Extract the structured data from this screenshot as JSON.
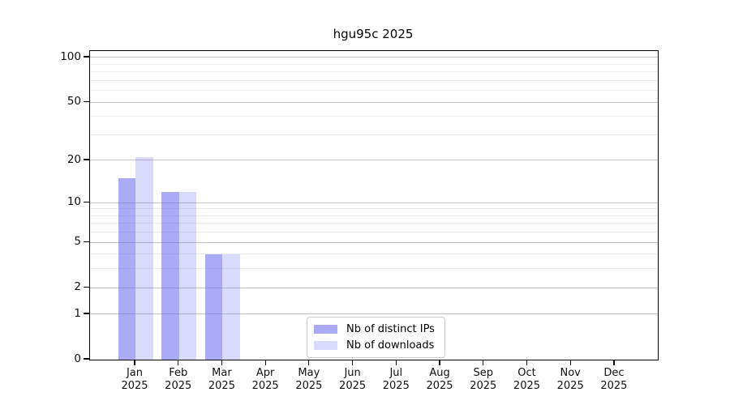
{
  "figure": {
    "background": "#ffffff",
    "text_color": "#000000",
    "spine_color": "#000000",
    "major_grid_color": "#c4c4c4",
    "minor_grid_color": "#ebebeb"
  },
  "chart_data": {
    "type": "bar",
    "title": "hgu95c 2025",
    "x_categories": [
      {
        "month": "Jan",
        "year": "2025"
      },
      {
        "month": "Feb",
        "year": "2025"
      },
      {
        "month": "Mar",
        "year": "2025"
      },
      {
        "month": "Apr",
        "year": "2025"
      },
      {
        "month": "May",
        "year": "2025"
      },
      {
        "month": "Jun",
        "year": "2025"
      },
      {
        "month": "Jul",
        "year": "2025"
      },
      {
        "month": "Aug",
        "year": "2025"
      },
      {
        "month": "Sep",
        "year": "2025"
      },
      {
        "month": "Oct",
        "year": "2025"
      },
      {
        "month": "Nov",
        "year": "2025"
      },
      {
        "month": "Dec",
        "year": "2025"
      }
    ],
    "series": [
      {
        "name": "Nb of distinct IPs",
        "color": "rgba(85,85,240,0.50)",
        "color_hex_on_white": "#aaaaf7",
        "values": [
          15,
          12,
          4,
          0,
          0,
          0,
          0,
          0,
          0,
          0,
          0,
          0
        ]
      },
      {
        "name": "Nb of downloads",
        "color": "rgba(85,85,240,0.22)",
        "color_hex_on_white": "#dcdcf9",
        "values": [
          21,
          12,
          4,
          0,
          0,
          0,
          0,
          0,
          0,
          0,
          0,
          0
        ]
      }
    ],
    "y_scale": "log10(value+1)",
    "y_major_ticks": [
      0,
      1,
      2,
      5,
      10,
      20,
      50,
      100
    ],
    "y_minor_gridlines": [
      3,
      4,
      6,
      7,
      8,
      9,
      30,
      40,
      60,
      70,
      80,
      90
    ],
    "ylim": [
      0,
      110
    ],
    "grid": true,
    "legend_position": "inside-bottom-center"
  }
}
